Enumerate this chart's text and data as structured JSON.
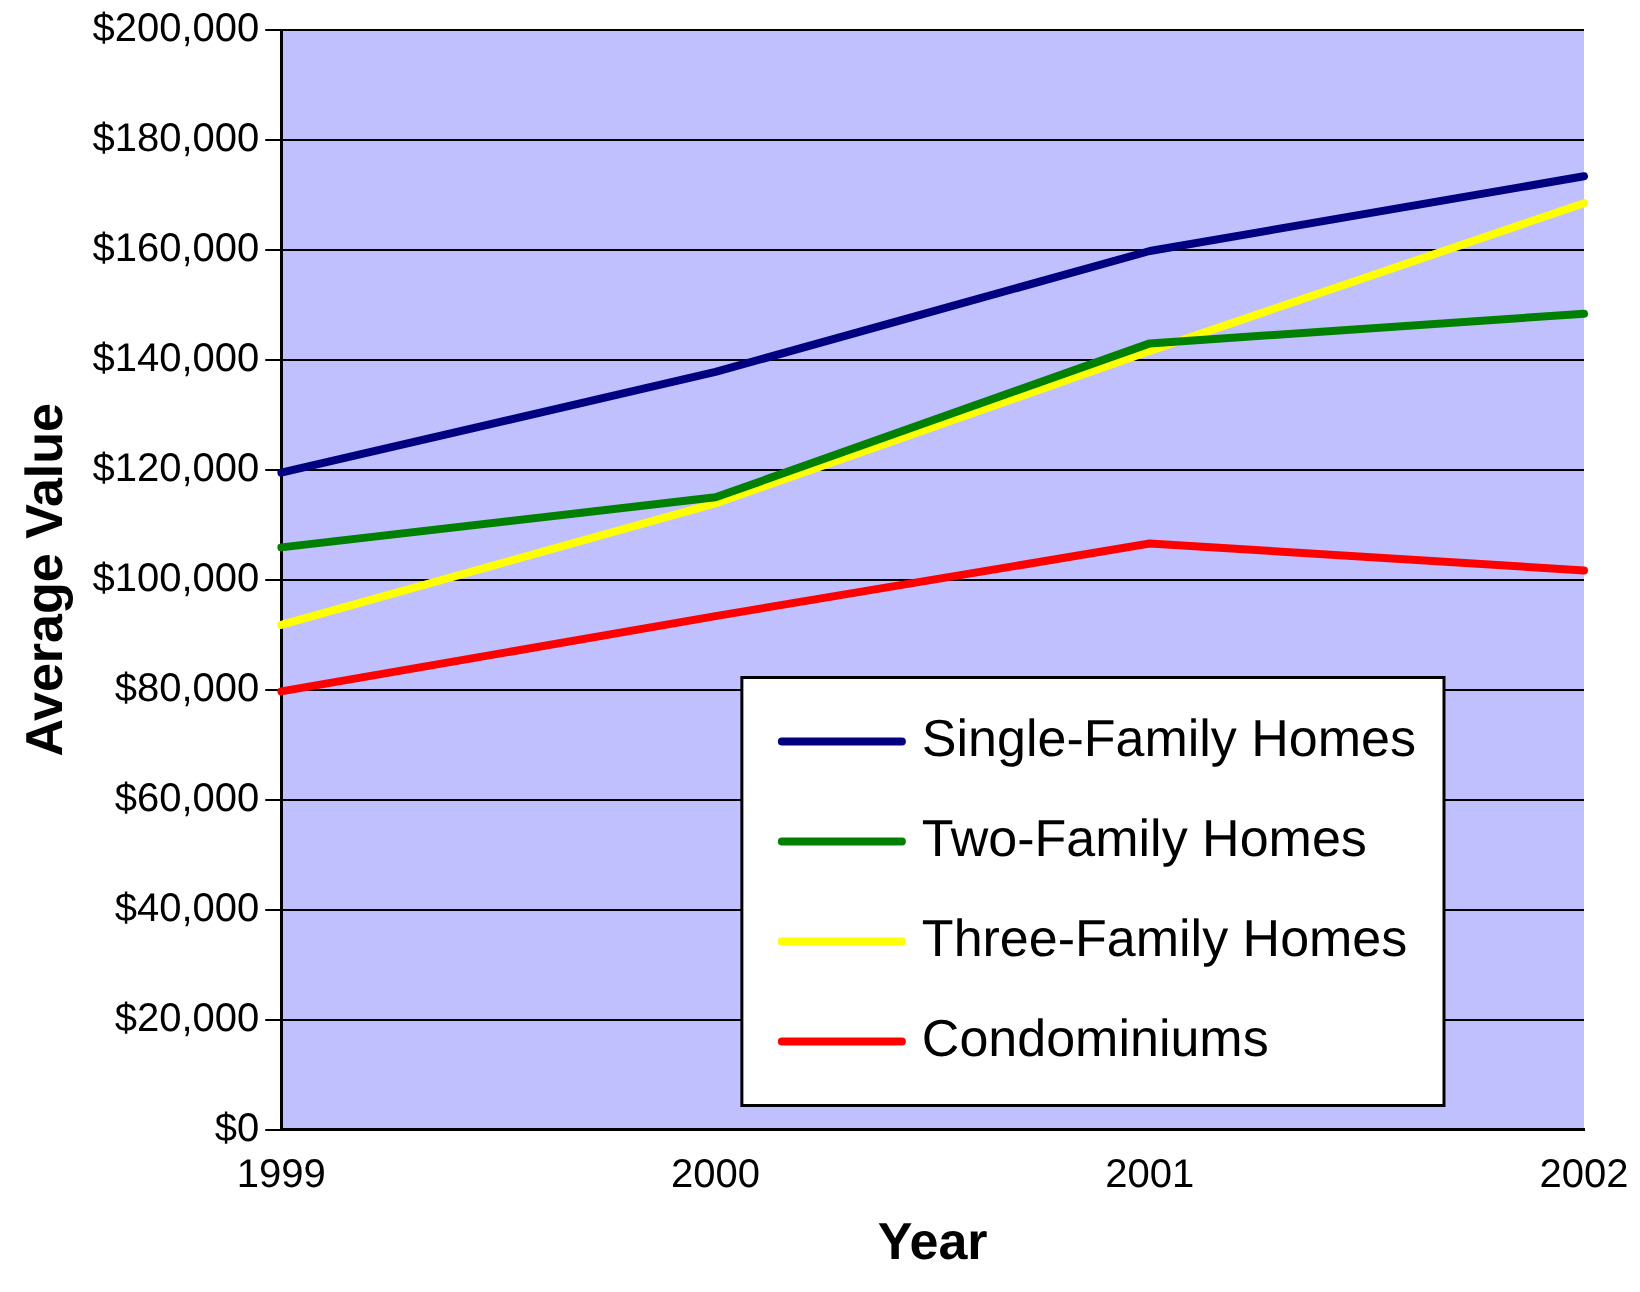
{
  "chart_data": {
    "type": "line",
    "xlabel": "Year",
    "ylabel": "Average Value",
    "categories": [
      "1999",
      "2000",
      "2001",
      "2002"
    ],
    "series": [
      {
        "name": "Single-Family Homes",
        "color": "#000080",
        "values": [
          119500,
          137800,
          159800,
          173400
        ]
      },
      {
        "name": "Two-Family Homes",
        "color": "#008000",
        "values": [
          105900,
          115000,
          143000,
          148400
        ]
      },
      {
        "name": "Three-Family Homes",
        "color": "#ffff00",
        "values": [
          91800,
          113900,
          141600,
          168500
        ]
      },
      {
        "name": "Condominiums",
        "color": "#ff0000",
        "values": [
          79700,
          93400,
          106600,
          101700
        ]
      }
    ],
    "ylim": [
      0,
      200000
    ],
    "yticks": [
      {
        "value": 0,
        "label": "$0"
      },
      {
        "value": 20000,
        "label": "$20,000"
      },
      {
        "value": 40000,
        "label": "$40,000"
      },
      {
        "value": 60000,
        "label": "$60,000"
      },
      {
        "value": 80000,
        "label": "$80,000"
      },
      {
        "value": 100000,
        "label": "$100,000"
      },
      {
        "value": 120000,
        "label": "$120,000"
      },
      {
        "value": 140000,
        "label": "$140,000"
      },
      {
        "value": 160000,
        "label": "$160,000"
      },
      {
        "value": 180000,
        "label": "$180,000"
      },
      {
        "value": 200000,
        "label": "$200,000"
      }
    ],
    "grid": "y",
    "legend": "bottom right",
    "marker": "none",
    "line_style": "solid"
  }
}
